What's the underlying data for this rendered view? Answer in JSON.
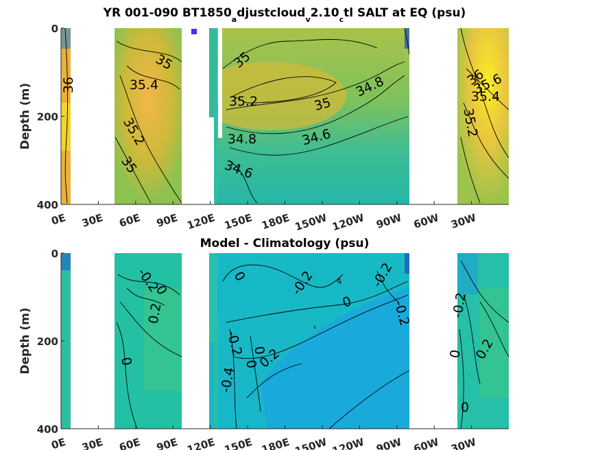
{
  "chart_data": [
    {
      "type": "heatmap",
      "title_parts": [
        "YR 001-090 BT1850",
        "a",
        "djustcloud",
        "v",
        "2.10",
        "c",
        "tl SALT at EQ (psu)"
      ],
      "xlabel": "",
      "ylabel": "Depth (m)",
      "x_ticks": [
        "0E",
        "30E",
        "60E",
        "90E",
        "120E",
        "150E",
        "180E",
        "150W",
        "120W",
        "90W",
        "60W",
        "30W"
      ],
      "y_ticks": [
        "0",
        "200",
        "400"
      ],
      "ylim": [
        0,
        400
      ],
      "y_reversed": true,
      "colormap": "parula",
      "contour_labels": [
        "35",
        "36",
        "35.4",
        "35.2",
        "35",
        "35",
        "35.2",
        "34.8",
        "35",
        "34.8",
        "34.6",
        "34.6",
        "36",
        "35.6",
        "35.4",
        "35.2"
      ],
      "colors": {
        "high": "#f5e61e",
        "mid": "#7dbf56",
        "low": "#2eb7b0"
      }
    },
    {
      "type": "heatmap",
      "title": "Model - Climatology (psu)",
      "xlabel": "",
      "ylabel": "Depth (m)",
      "x_ticks": [
        "0E",
        "30E",
        "60E",
        "90E",
        "120E",
        "150E",
        "180E",
        "150W",
        "120W",
        "90W",
        "60W",
        "30W"
      ],
      "y_ticks": [
        "0",
        "200",
        "400"
      ],
      "ylim": [
        0,
        400
      ],
      "y_reversed": true,
      "colormap": "parula",
      "contour_labels": [
        "-0.2",
        "0",
        "0.2",
        "0",
        "0",
        "-0.2",
        "0",
        "-0.2",
        "-0.2",
        "-0.2",
        "0",
        "0",
        "0.2",
        "-0.4",
        "-0.2",
        "0.2",
        "0",
        "0"
      ],
      "colors": {
        "high": "#3bc47a",
        "mid": "#1eb7c7",
        "low": "#1aa3de"
      }
    }
  ]
}
